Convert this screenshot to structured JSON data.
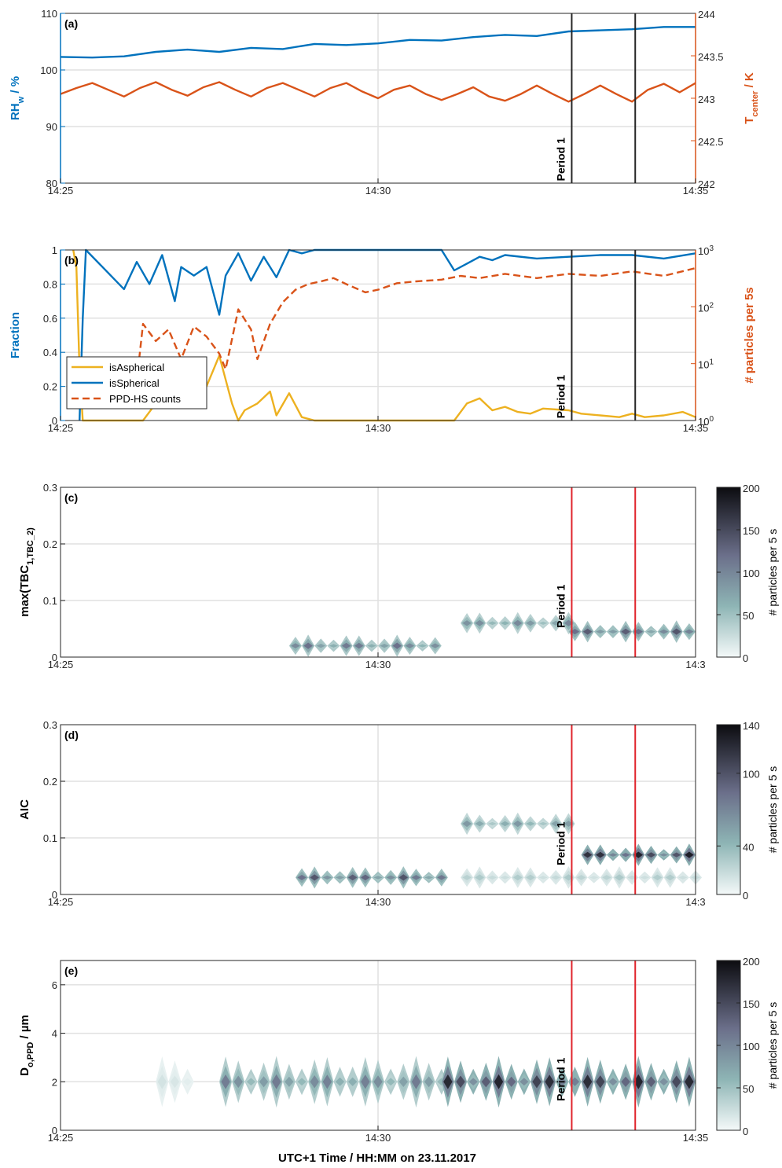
{
  "xlabel": "UTC+1 Time / HH:MM  on 23.11.2017",
  "period_label": "Period 1",
  "colors": {
    "blue": "#0072BD",
    "orange": "#D95319",
    "yellow": "#EDB120",
    "red": "#E0242B",
    "grid": "#e1e1e1"
  },
  "chart_data": [
    {
      "panel": "(a)",
      "type": "line",
      "xticks": [
        "14:25",
        "14:30",
        "14:35"
      ],
      "xlim": [
        0,
        10
      ],
      "ylabel": "RH_w / %",
      "ylim": [
        80,
        110
      ],
      "yticks": [
        80,
        90,
        100,
        110
      ],
      "y2label": "T_center / K",
      "y2lim": [
        242,
        244
      ],
      "y2ticks": [
        "242",
        "242.5",
        "243",
        "243.5",
        "244"
      ],
      "period_lines": [
        8.05,
        9.05
      ],
      "series": [
        {
          "axis": "left",
          "color": "blue",
          "x": [
            0,
            0.5,
            1,
            1.5,
            2,
            2.5,
            3,
            3.5,
            4,
            4.5,
            5,
            5.5,
            6,
            6.5,
            7,
            7.5,
            8,
            8.5,
            9,
            9.5,
            10
          ],
          "y": [
            102.3,
            102.2,
            102.4,
            103.2,
            103.6,
            103.2,
            103.9,
            103.7,
            104.6,
            104.4,
            104.7,
            105.3,
            105.2,
            105.8,
            106.2,
            106.0,
            106.8,
            107.0,
            107.2,
            107.6,
            107.6
          ]
        },
        {
          "axis": "right",
          "color": "orange",
          "x": [
            0,
            0.25,
            0.5,
            0.75,
            1,
            1.25,
            1.5,
            1.75,
            2,
            2.25,
            2.5,
            2.75,
            3,
            3.25,
            3.5,
            3.75,
            4,
            4.25,
            4.5,
            4.75,
            5,
            5.25,
            5.5,
            5.75,
            6,
            6.25,
            6.5,
            6.75,
            7,
            7.25,
            7.5,
            7.75,
            8,
            8.25,
            8.5,
            8.75,
            9,
            9.25,
            9.5,
            9.75,
            10
          ],
          "y": [
            243.05,
            243.12,
            243.18,
            243.1,
            243.02,
            243.12,
            243.19,
            243.1,
            243.03,
            243.13,
            243.19,
            243.1,
            243.02,
            243.12,
            243.18,
            243.1,
            243.02,
            243.12,
            243.18,
            243.08,
            243.0,
            243.1,
            243.15,
            243.05,
            242.98,
            243.05,
            243.13,
            243.02,
            242.97,
            243.05,
            243.15,
            243.05,
            242.96,
            243.05,
            243.15,
            243.05,
            242.96,
            243.1,
            243.17,
            243.07,
            243.18
          ]
        }
      ]
    },
    {
      "panel": "(b)",
      "type": "line",
      "xticks": [
        "14:25",
        "14:30",
        "14:35"
      ],
      "xlim": [
        0,
        10
      ],
      "ylabel": "Fraction",
      "ylim": [
        0,
        1
      ],
      "yticks": [
        0,
        0.2,
        0.4,
        0.6,
        0.8,
        1
      ],
      "y2label": "# particles per 5s",
      "y2scale": "log",
      "y2lim": [
        1,
        1000
      ],
      "y2ticks": [
        "10^0",
        "10^1",
        "10^2",
        "10^3"
      ],
      "period_lines": [
        8.05,
        9.05
      ],
      "legend": {
        "position": "lower-left",
        "entries": [
          "isAspherical",
          "isSpherical",
          "PPD-HS counts"
        ]
      },
      "series": [
        {
          "name": "isAspherical",
          "axis": "left",
          "color": "yellow",
          "style": "solid",
          "x": [
            0.2,
            0.25,
            0.3,
            0.35,
            1.3,
            1.5,
            2.0,
            2.3,
            2.5,
            2.7,
            2.8,
            2.9,
            3.1,
            3.3,
            3.4,
            3.6,
            3.8,
            4.0,
            4.5,
            5.0,
            5.5,
            6.0,
            6.2,
            6.4,
            6.6,
            6.8,
            7.0,
            7.2,
            7.4,
            7.6,
            8.0,
            8.2,
            8.5,
            8.8,
            9.0,
            9.2,
            9.5,
            9.8,
            10.0
          ],
          "y": [
            1.0,
            0.9,
            0.3,
            0.0,
            0.0,
            0.1,
            0.15,
            0.2,
            0.38,
            0.1,
            0.0,
            0.06,
            0.1,
            0.17,
            0.03,
            0.16,
            0.02,
            0.0,
            0.0,
            0.0,
            0.0,
            0.0,
            0.0,
            0.1,
            0.13,
            0.06,
            0.08,
            0.05,
            0.04,
            0.07,
            0.06,
            0.04,
            0.03,
            0.02,
            0.04,
            0.02,
            0.03,
            0.05,
            0.02
          ]
        },
        {
          "name": "isSpherical",
          "axis": "left",
          "color": "blue",
          "style": "solid",
          "x": [
            0.3,
            0.35,
            0.4,
            1.0,
            1.2,
            1.4,
            1.6,
            1.8,
            1.9,
            2.1,
            2.3,
            2.5,
            2.6,
            2.8,
            3.0,
            3.2,
            3.4,
            3.6,
            3.8,
            4.0,
            4.5,
            5.0,
            5.5,
            6.0,
            6.2,
            6.4,
            6.6,
            6.8,
            7.0,
            7.5,
            8.0,
            8.5,
            9.0,
            9.5,
            10.0
          ],
          "y": [
            0.0,
            0.6,
            1.0,
            0.77,
            0.93,
            0.8,
            0.97,
            0.7,
            0.9,
            0.85,
            0.9,
            0.62,
            0.85,
            0.98,
            0.82,
            0.96,
            0.84,
            1.0,
            0.98,
            1.0,
            1.0,
            1.0,
            1.0,
            1.0,
            0.88,
            0.92,
            0.96,
            0.94,
            0.97,
            0.95,
            0.96,
            0.97,
            0.97,
            0.95,
            0.98
          ]
        },
        {
          "name": "PPD-HS counts",
          "axis": "right",
          "color": "orange",
          "style": "dashed",
          "x": [
            1.2,
            1.3,
            1.5,
            1.7,
            1.9,
            2.1,
            2.3,
            2.5,
            2.6,
            2.8,
            3.0,
            3.1,
            3.3,
            3.5,
            3.7,
            3.9,
            4.1,
            4.3,
            4.5,
            4.8,
            5.0,
            5.3,
            5.6,
            6.0,
            6.3,
            6.6,
            7.0,
            7.5,
            8.0,
            8.5,
            9.0,
            9.5,
            10.0
          ],
          "y": [
            5,
            50,
            25,
            40,
            12,
            45,
            30,
            15,
            8,
            90,
            40,
            12,
            50,
            120,
            200,
            250,
            280,
            320,
            250,
            180,
            200,
            260,
            280,
            300,
            350,
            320,
            380,
            320,
            380,
            350,
            420,
            350,
            480
          ]
        }
      ]
    },
    {
      "panel": "(c)",
      "type": "heatmap",
      "xticks": [
        "14:25",
        "14:30",
        "14:3"
      ],
      "xlim": [
        0,
        10
      ],
      "ylabel": "max(TBC_1,TBC_2)",
      "ylim": [
        0,
        0.3
      ],
      "yticks": [
        0,
        0.1,
        0.2,
        0.3
      ],
      "colorbar_label": "# particles per 5 s",
      "colorbar_ticks": [
        0,
        50,
        100,
        150,
        200
      ],
      "clim": [
        0,
        200
      ],
      "period_lines": [
        8.05,
        9.05
      ],
      "bands": [
        {
          "x_start": 3.6,
          "x_end": 6.1,
          "y": 0.02,
          "level": 120
        },
        {
          "x_start": 6.3,
          "x_end": 8.0,
          "y": 0.06,
          "level": 100
        },
        {
          "x_start": 8.0,
          "x_end": 10.0,
          "y": 0.045,
          "level": 140
        }
      ]
    },
    {
      "panel": "(d)",
      "type": "heatmap",
      "xticks": [
        "14:25",
        "14:30",
        "14:3"
      ],
      "xlim": [
        0,
        10
      ],
      "ylabel": "AIC",
      "ylim": [
        0,
        0.3
      ],
      "yticks": [
        0,
        0.1,
        0.2,
        0.3
      ],
      "colorbar_label": "# particles per 5 s",
      "colorbar_ticks": [
        0,
        40,
        100,
        140
      ],
      "clim": [
        0,
        140
      ],
      "period_lines": [
        8.05,
        9.05
      ],
      "bands": [
        {
          "x_start": 3.7,
          "x_end": 6.1,
          "y": 0.03,
          "level": 100
        },
        {
          "x_start": 6.3,
          "x_end": 8.0,
          "y": 0.125,
          "level": 60
        },
        {
          "x_start": 6.3,
          "x_end": 10.0,
          "y": 0.03,
          "level": 30
        },
        {
          "x_start": 8.2,
          "x_end": 10.0,
          "y": 0.07,
          "level": 130
        }
      ]
    },
    {
      "panel": "(e)",
      "type": "heatmap",
      "xticks": [
        "14:25",
        "14:30",
        "14:35"
      ],
      "xlim": [
        0,
        10
      ],
      "ylabel": "D_o,PPD / µm",
      "ylim": [
        0,
        7
      ],
      "yticks": [
        0,
        2,
        4,
        6
      ],
      "colorbar_label": "# particles per 5 s",
      "colorbar_ticks": [
        0,
        50,
        100,
        150,
        200
      ],
      "clim": [
        0,
        200
      ],
      "period_lines": [
        8.05,
        9.05
      ],
      "bands": [
        {
          "x_start": 1.5,
          "x_end": 2.0,
          "y": 2.0,
          "level": 20
        },
        {
          "x_start": 2.5,
          "x_end": 6.0,
          "y": 2.0,
          "level": 110
        },
        {
          "x_start": 6.0,
          "x_end": 10.0,
          "y": 2.0,
          "level": 180
        }
      ]
    }
  ]
}
